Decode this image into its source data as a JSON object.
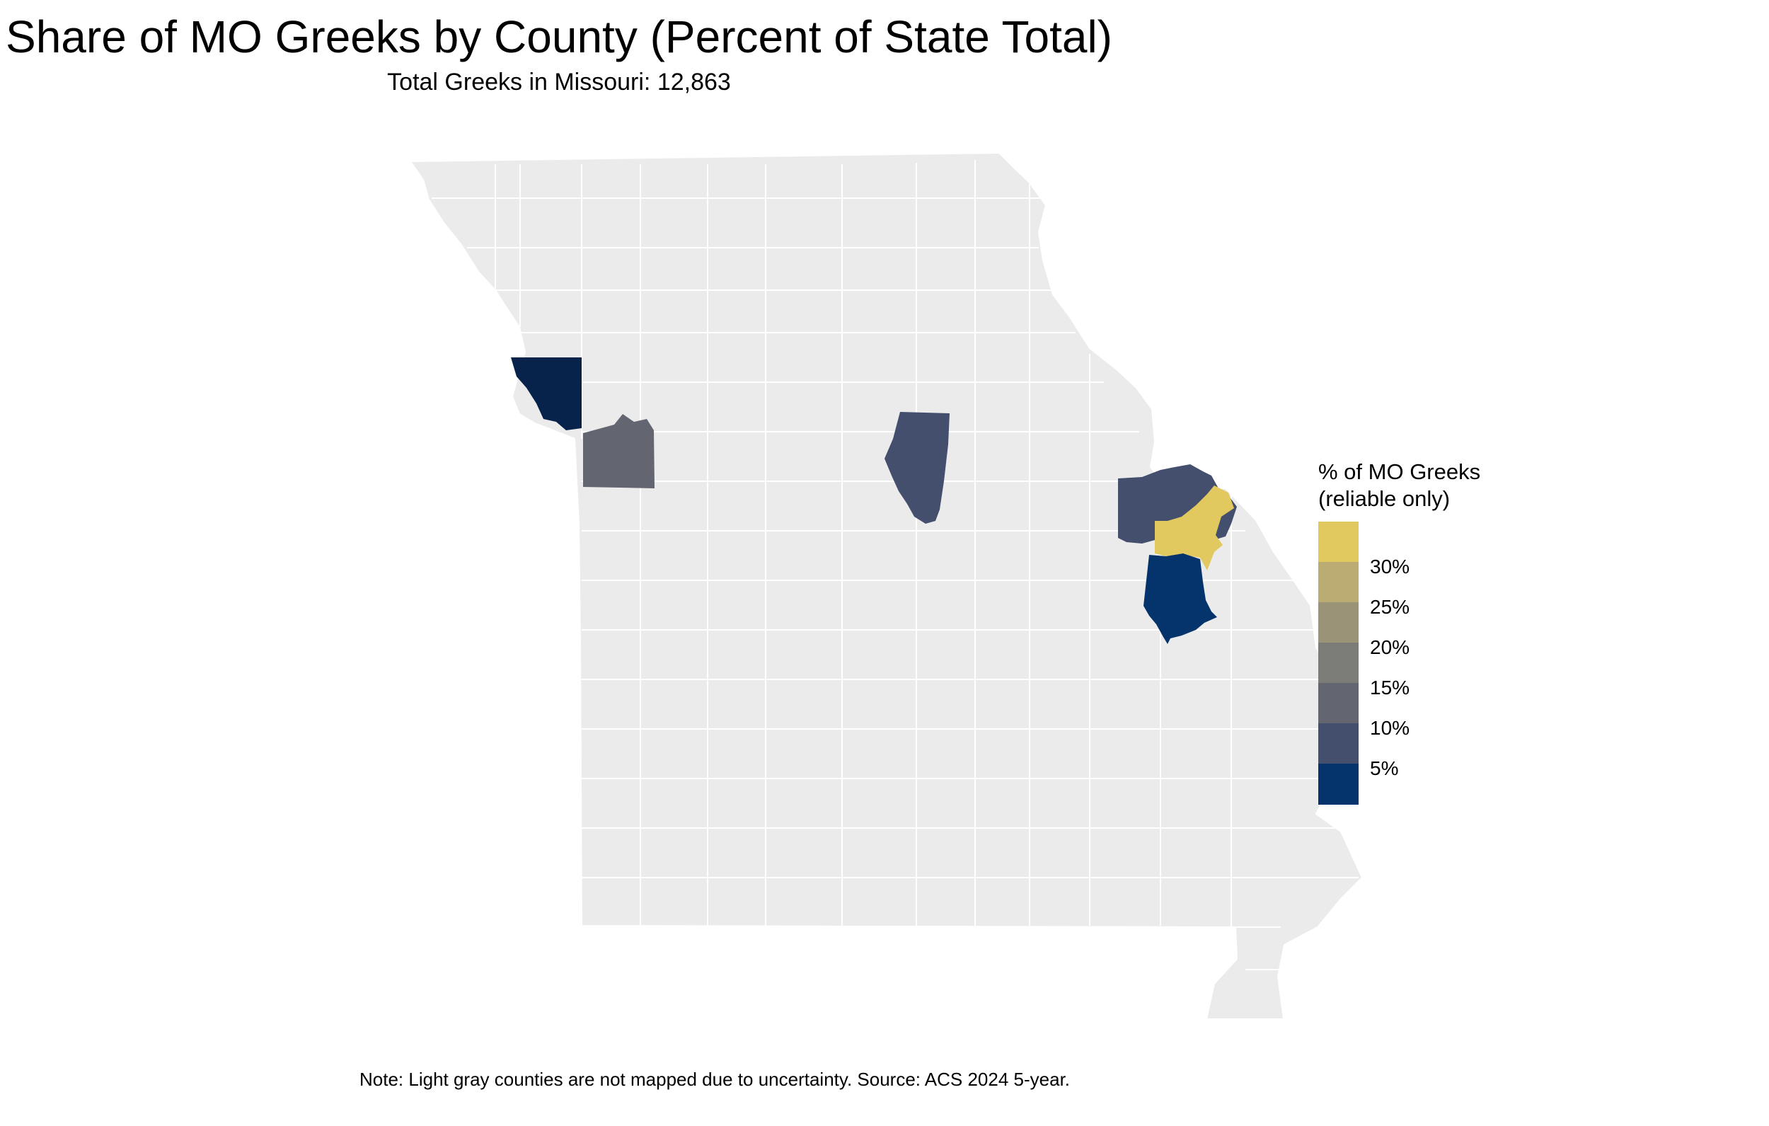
{
  "title": "Share of MO Greeks by County (Percent of State Total)",
  "subtitle": "Total Greeks in Missouri: 12,863",
  "caption": "Note: Light gray counties are not mapped due to uncertainty. Source: ACS 2024 5-year.",
  "colors": {
    "background": "#ffffff",
    "unmapped_county": "#ebebeb",
    "county_border": "#ffffff"
  },
  "legend": {
    "title_line1": "% of MO Greeks",
    "title_line2": "(reliable only)",
    "breaks": [
      "30%",
      "25%",
      "20%",
      "15%",
      "10%",
      "5%"
    ],
    "colors_top_to_bottom": [
      "#e2c95f",
      "#bbac73",
      "#9a9378",
      "#7b7b78",
      "#636570",
      "#444f6e",
      "#05346d"
    ]
  },
  "map_data": {
    "state": "Missouri",
    "mapped_counties": [
      {
        "area": "Kansas City area (Platte/Clay)",
        "share_pct": 7.0,
        "color": "#08234b"
      },
      {
        "area": "Jackson area",
        "share_pct": 13.0,
        "color": "#636570"
      },
      {
        "area": "Boone area",
        "share_pct": 9.0,
        "color": "#444f6e"
      },
      {
        "area": "St. Charles area",
        "share_pct": 9.5,
        "color": "#444f6e"
      },
      {
        "area": "St. Louis city area",
        "share_pct": 9.0,
        "color": "#444f6e"
      },
      {
        "area": "St. Louis County area",
        "share_pct": 31.0,
        "color": "#e2c95f"
      },
      {
        "area": "Jefferson area",
        "share_pct": 4.0,
        "color": "#05346d"
      }
    ]
  }
}
